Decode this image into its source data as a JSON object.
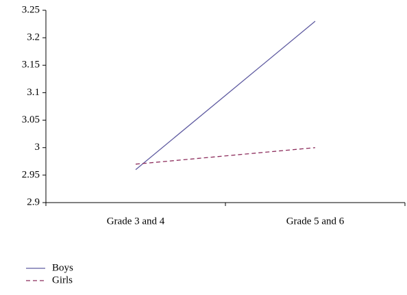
{
  "chart_data": {
    "type": "line",
    "categories": [
      "Grade 3 and 4",
      "Grade 5 and 6"
    ],
    "series": [
      {
        "name": "Boys",
        "color": "#5e5aa0",
        "dash": false,
        "values": [
          2.96,
          3.23
        ]
      },
      {
        "name": "Girls",
        "color": "#8b2a5a",
        "dash": true,
        "values": [
          2.97,
          3.0
        ]
      }
    ],
    "ylim": [
      2.9,
      3.25
    ],
    "yticks": [
      2.9,
      2.95,
      3,
      3.05,
      3.1,
      3.15,
      3.2,
      3.25
    ],
    "legend": "bottom-left"
  }
}
